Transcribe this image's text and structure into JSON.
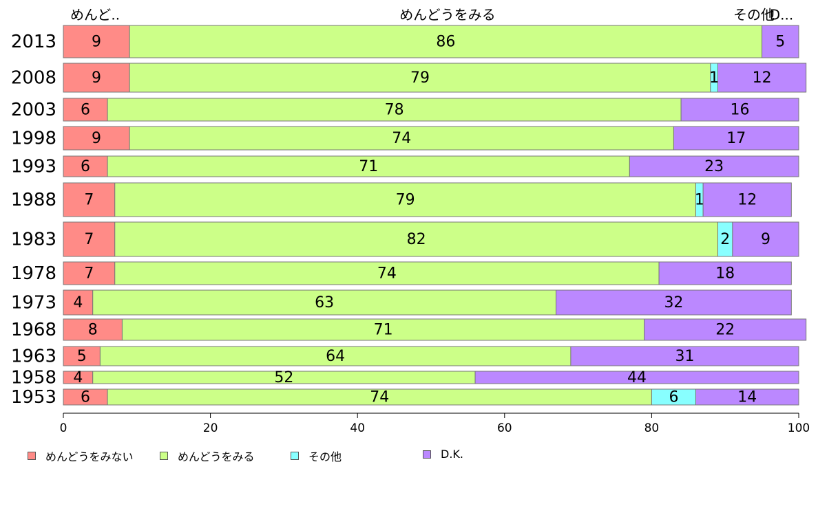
{
  "chart_data": {
    "type": "bar",
    "orientation": "horizontal",
    "stacked": true,
    "categories": [
      "2013",
      "2008",
      "2003",
      "1998",
      "1993",
      "1988",
      "1983",
      "1978",
      "1973",
      "1968",
      "1963",
      "1958",
      "1953"
    ],
    "series": [
      {
        "name": "めんどうをみない",
        "color": "#ff8b87",
        "values": [
          9,
          9,
          6,
          9,
          6,
          7,
          7,
          7,
          4,
          8,
          5,
          4,
          6
        ]
      },
      {
        "name": "めんどうをみる",
        "color": "#ccff88",
        "values": [
          86,
          79,
          78,
          74,
          71,
          79,
          82,
          74,
          63,
          71,
          64,
          52,
          74
        ]
      },
      {
        "name": "その他",
        "color": "#88ffff",
        "values": [
          0,
          1,
          0,
          0,
          0,
          1,
          2,
          0,
          0,
          0,
          0,
          0,
          6
        ]
      },
      {
        "name": "D.K.",
        "color": "#bb88ff",
        "values": [
          5,
          12,
          16,
          17,
          23,
          12,
          9,
          18,
          32,
          22,
          31,
          44,
          14
        ]
      }
    ],
    "top_labels": [
      "めんど..",
      "めんどうをみる",
      "その他",
      "D..."
    ],
    "xlim": [
      0,
      100
    ],
    "xticks": [
      "0",
      "20",
      "40",
      "60",
      "80",
      "100"
    ],
    "legend_position": "bottom-left"
  }
}
